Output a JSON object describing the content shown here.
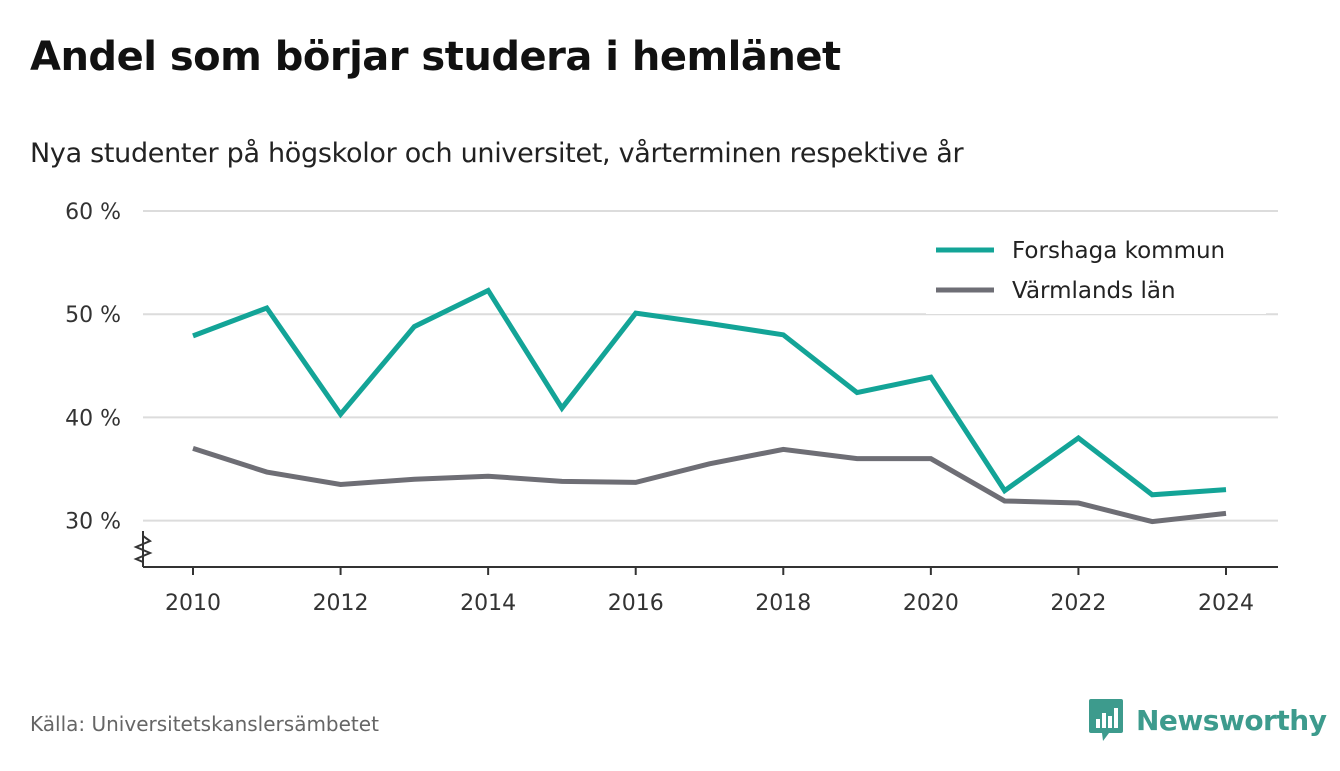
{
  "title": "Andel som börjar studera i hemlänet",
  "subtitle": "Nya studenter på högskolor och universitet, vårterminen respektive år",
  "source": "Källa: Universitetskanslersämbetet",
  "brand": {
    "name": "Newsworthy",
    "color": "#3d9b8d"
  },
  "chart_data": {
    "type": "line",
    "x": [
      2010,
      2011,
      2012,
      2013,
      2014,
      2015,
      2016,
      2017,
      2018,
      2019,
      2020,
      2021,
      2022,
      2023,
      2024
    ],
    "xticks": [
      2010,
      2012,
      2014,
      2016,
      2018,
      2020,
      2022,
      2024
    ],
    "ylim": [
      25.5,
      60
    ],
    "yticks": [
      30,
      40,
      50,
      60
    ],
    "ytick_labels": [
      "30 %",
      "40 %",
      "50 %",
      "60 %"
    ],
    "axis_break": true,
    "grid": "horizontal",
    "legend_position": "top-right",
    "series": [
      {
        "name": "Forshaga kommun",
        "color": "#13a497",
        "values": [
          47.9,
          50.6,
          40.3,
          48.8,
          52.3,
          40.9,
          50.1,
          49.1,
          48.0,
          42.4,
          43.9,
          32.9,
          38.0,
          32.5,
          33.0
        ]
      },
      {
        "name": "Värmlands län",
        "color": "#6e6e75",
        "values": [
          37.0,
          34.7,
          33.5,
          34.0,
          34.3,
          33.8,
          33.7,
          35.5,
          36.9,
          36.0,
          36.0,
          31.9,
          31.7,
          29.9,
          30.7
        ]
      }
    ]
  }
}
